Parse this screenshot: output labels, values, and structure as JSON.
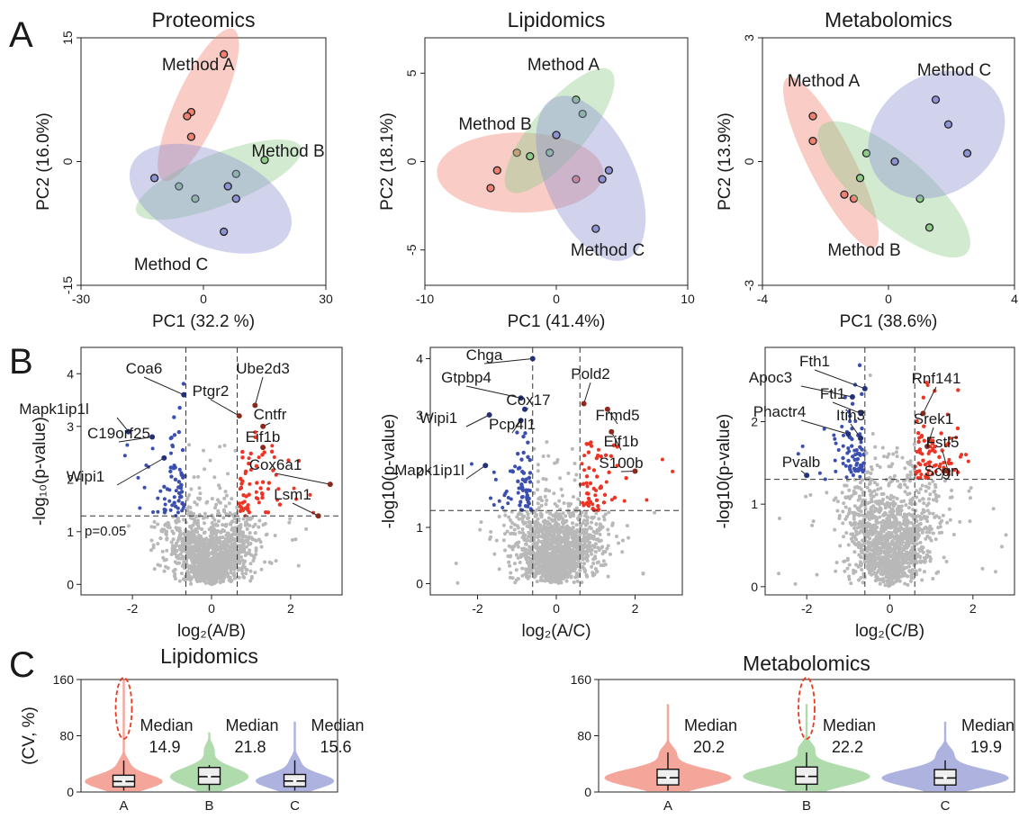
{
  "panel_labels": [
    "A",
    "B",
    "C"
  ],
  "colors": {
    "A": "#f08070",
    "B": "#8fcc8a",
    "C": "#8c92d2",
    "blue_pt": "#3b4fb0",
    "red_pt": "#ee3424",
    "grey_pt": "#b8b8b8"
  },
  "chart_data": [
    {
      "type": "scatter",
      "title": "Proteomics",
      "xlabel": "PC1 (32.2 %)",
      "ylabel": "PC2 (16.0%)",
      "xlim": [
        -30,
        30
      ],
      "ylim": [
        -15,
        15
      ],
      "xticks": [
        "-30",
        "0",
        "30"
      ],
      "yticks": [
        "-15",
        "0",
        "15"
      ],
      "series": [
        {
          "name": "Method A",
          "points": [
            [
              5,
              13
            ],
            [
              -3,
              6
            ],
            [
              -4,
              5.5
            ],
            [
              -3,
              3
            ]
          ]
        },
        {
          "name": "Method B",
          "points": [
            [
              15,
              0.2
            ],
            [
              -6,
              -3
            ],
            [
              -2,
              -4.5
            ],
            [
              8,
              -1.5
            ]
          ]
        },
        {
          "name": "Method C",
          "points": [
            [
              -12,
              -2
            ],
            [
              5,
              -8.5
            ],
            [
              8,
              -4.5
            ],
            [
              6,
              -3
            ]
          ]
        }
      ]
    },
    {
      "type": "scatter",
      "title": "Lipidomics",
      "xlabel": "PC1 (41.4%)",
      "ylabel": "PC2 (18.1%)",
      "xlim": [
        -10,
        10
      ],
      "ylim": [
        -7,
        7
      ],
      "xticks": [
        "-10",
        "0",
        "10"
      ],
      "yticks": [
        "-5",
        "0",
        "5"
      ],
      "series": [
        {
          "name": "Method A",
          "points": [
            [
              -5,
              -1.5
            ],
            [
              -4.5,
              -0.5
            ],
            [
              -3,
              0.5
            ],
            [
              1.5,
              -1
            ]
          ]
        },
        {
          "name": "Method B",
          "points": [
            [
              1.5,
              3.5
            ],
            [
              2,
              2.7
            ],
            [
              -0.5,
              0.5
            ],
            [
              -2,
              0.3
            ]
          ]
        },
        {
          "name": "Method C",
          "points": [
            [
              0,
              1.5
            ],
            [
              3.5,
              -1
            ],
            [
              4,
              -0.5
            ],
            [
              3,
              -3.8
            ]
          ]
        }
      ]
    },
    {
      "type": "scatter",
      "title": "Metabolomics",
      "xlabel": "PC1 (38.6%)",
      "ylabel": "PC2 (13.9%)",
      "xlim": [
        -4,
        4
      ],
      "ylim": [
        -3,
        3
      ],
      "xticks": [
        "-4",
        "0",
        "4"
      ],
      "yticks": [
        "-3",
        "0",
        "3"
      ],
      "series": [
        {
          "name": "Method A",
          "points": [
            [
              -2.4,
              1.1
            ],
            [
              -2.4,
              0.5
            ],
            [
              -1.4,
              -0.8
            ],
            [
              -1.1,
              -0.9
            ]
          ]
        },
        {
          "name": "Method B",
          "points": [
            [
              -0.7,
              0.2
            ],
            [
              -0.9,
              -0.4
            ],
            [
              1,
              -0.9
            ],
            [
              1.3,
              -1.6
            ]
          ]
        },
        {
          "name": "Method C",
          "points": [
            [
              1.5,
              1.5
            ],
            [
              1.9,
              0.9
            ],
            [
              2.5,
              0.2
            ],
            [
              0.2,
              0
            ]
          ]
        }
      ]
    },
    {
      "type": "scatter",
      "xlabel": "log₂(A/B)",
      "ylabel": "-log₁₀(p-value)",
      "xlim": [
        -3.3,
        3.3
      ],
      "ylim": [
        -0.2,
        4.5
      ],
      "xticks": [
        "-2",
        "0",
        "2"
      ],
      "yticks": [
        "0",
        "1",
        "2",
        "3",
        "4"
      ],
      "fc_cut": 0.65,
      "p_cut": 1.3,
      "threshold_label": "p=0.05",
      "labels": [
        {
          "text": "Coa6",
          "x": -0.7,
          "y": 3.6
        },
        {
          "text": "Mapk1ip1l",
          "x": -2.1,
          "y": 2.9
        },
        {
          "text": "C19orf25",
          "x": -1.5,
          "y": 2.8
        },
        {
          "text": "Wipi1",
          "x": -1.2,
          "y": 2.4
        },
        {
          "text": "Ube2d3",
          "x": 1.1,
          "y": 3.4
        },
        {
          "text": "Ptgr2",
          "x": 0.7,
          "y": 3.2
        },
        {
          "text": "Cntfr",
          "x": 1.3,
          "y": 3.0
        },
        {
          "text": "Eif1b",
          "x": 1.3,
          "y": 2.6
        },
        {
          "text": "Cox6a1",
          "x": 3.0,
          "y": 1.9
        },
        {
          "text": "Lsm1",
          "x": 2.7,
          "y": 1.3
        }
      ]
    },
    {
      "type": "scatter",
      "xlabel": "log₂(A/C)",
      "ylabel": "-log10(p-value)",
      "xlim": [
        -3.2,
        3.2
      ],
      "ylim": [
        -0.2,
        4.2
      ],
      "xticks": [
        "-2",
        "0",
        "2"
      ],
      "yticks": [
        "0",
        "1",
        "2",
        "3",
        "4"
      ],
      "fc_cut": 0.6,
      "p_cut": 1.3,
      "labels": [
        {
          "text": "Chga",
          "x": -0.6,
          "y": 4.0
        },
        {
          "text": "Gtpbp4",
          "x": -0.9,
          "y": 3.3
        },
        {
          "text": "Cox17",
          "x": -0.8,
          "y": 3.1
        },
        {
          "text": "Wipi1",
          "x": -1.7,
          "y": 3.0
        },
        {
          "text": "Pcp4l1",
          "x": -0.9,
          "y": 2.9
        },
        {
          "text": "Mapk1ip1l",
          "x": -1.8,
          "y": 2.1
        },
        {
          "text": "Pold2",
          "x": 0.7,
          "y": 3.2
        },
        {
          "text": "Frmd5",
          "x": 1.3,
          "y": 3.1
        },
        {
          "text": "Eif1b",
          "x": 1.4,
          "y": 2.7
        },
        {
          "text": "S100b",
          "x": 2.0,
          "y": 2.0
        }
      ]
    },
    {
      "type": "scatter",
      "xlabel": "log₂(C/B)",
      "ylabel": "-log10(p-value)",
      "xlim": [
        -3,
        3
      ],
      "ylim": [
        -0.1,
        2.9
      ],
      "xticks": [
        "-2",
        "0",
        "2"
      ],
      "yticks": [
        "0",
        "1",
        "2"
      ],
      "fc_cut": 0.6,
      "p_cut": 1.3,
      "labels": [
        {
          "text": "Fth1",
          "x": -0.6,
          "y": 2.4
        },
        {
          "text": "Apoc3",
          "x": -0.9,
          "y": 2.3
        },
        {
          "text": "Ftl1",
          "x": -0.7,
          "y": 2.1
        },
        {
          "text": "Phactr4",
          "x": -1.0,
          "y": 1.85
        },
        {
          "text": "Itih3",
          "x": -0.7,
          "y": 1.8
        },
        {
          "text": "Pvalb",
          "x": -2.0,
          "y": 1.35
        },
        {
          "text": "Rnf141",
          "x": 0.8,
          "y": 2.1
        },
        {
          "text": "Srek1",
          "x": 0.9,
          "y": 1.7
        },
        {
          "text": "Fstl5",
          "x": 1.4,
          "y": 1.4
        },
        {
          "text": "Scgn",
          "x": 1.3,
          "y": 1.4
        }
      ]
    },
    {
      "type": "violin",
      "title": "Lipidomics",
      "ylabel": "(CV, %)",
      "ylim": [
        0,
        160
      ],
      "yticks": [
        "0",
        "80",
        "160"
      ],
      "categories": [
        "A",
        "B",
        "C"
      ],
      "medians": [
        14.9,
        21.8,
        15.6
      ],
      "annotations": [
        "Median",
        "Median",
        "Median"
      ],
      "median_labels": [
        "14.9",
        "21.8",
        "15.6"
      ]
    },
    {
      "type": "violin",
      "title": "Metabolomics",
      "ylim": [
        0,
        160
      ],
      "yticks": [
        "0",
        "80",
        "160"
      ],
      "categories": [
        "A",
        "B",
        "C"
      ],
      "medians": [
        20.2,
        22.2,
        19.9
      ],
      "annotations": [
        "Median",
        "Median",
        "Median"
      ],
      "median_labels": [
        "20.2",
        "22.2",
        "19.9"
      ]
    }
  ]
}
